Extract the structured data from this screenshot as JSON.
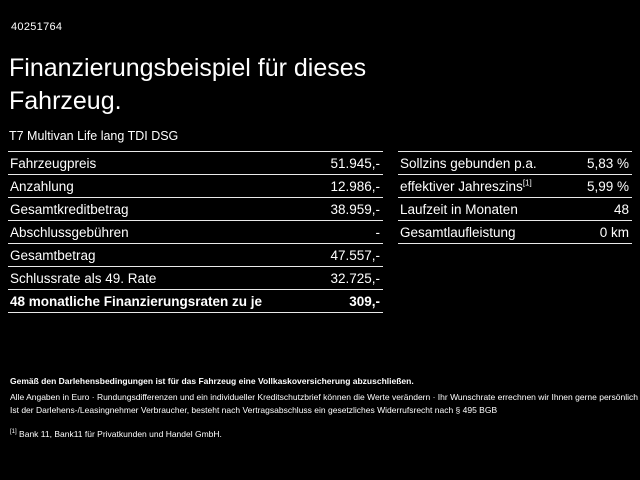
{
  "header": {
    "vehicle_id": "40251764",
    "title": "Finanzierungsbeispiel für dieses Fahrzeug.",
    "subtitle": "T7 Multivan Life lang TDI DSG"
  },
  "finance_table": {
    "rows": [
      {
        "label": "Fahrzeugpreis",
        "value": "51.945,-"
      },
      {
        "label": "Anzahlung",
        "value": "12.986,-"
      },
      {
        "label": "Gesamtkreditbetrag",
        "value": "38.959,-"
      },
      {
        "label": "Abschlussgebühren",
        "value": "-"
      },
      {
        "label": "Gesamtbetrag",
        "value": "47.557,-"
      },
      {
        "label": "Schlussrate als 49. Rate",
        "value": "32.725,-"
      },
      {
        "label": "48 monatliche Finanzierungsraten zu je",
        "value": "309,-"
      }
    ]
  },
  "rate_table": {
    "rows": [
      {
        "label": "Sollzins gebunden p.a.",
        "footnote": "",
        "value": "5,83 %"
      },
      {
        "label": "effektiver Jahreszins",
        "footnote": "[1]",
        "value": "5,99 %"
      },
      {
        "label": "Laufzeit in Monaten",
        "footnote": "",
        "value": "48"
      },
      {
        "label": "Gesamtlaufleistung",
        "footnote": "",
        "value": "0 km"
      }
    ]
  },
  "footer": {
    "bold_note": "Gemäß den Darlehensbedingungen ist für das Fahrzeug eine Vollkaskoversicherung abzuschließen.",
    "line1": "Alle Angaben in Euro · Rundungsdifferenzen und ein individueller Kreditschutzbrief können die Werte verändern · Ihr Wunschrate errechnen wir Ihnen gerne persönlich",
    "line2": "Ist der Darlehens-/Leasingnehmer Verbraucher, besteht nach Vertragsabschluss ein gesetzliches Widerrufsrecht nach § 495 BGB",
    "footnote_marker": "[1]",
    "footnote": "Bank 11, Bank11 für Privatkunden und Handel GmbH."
  }
}
